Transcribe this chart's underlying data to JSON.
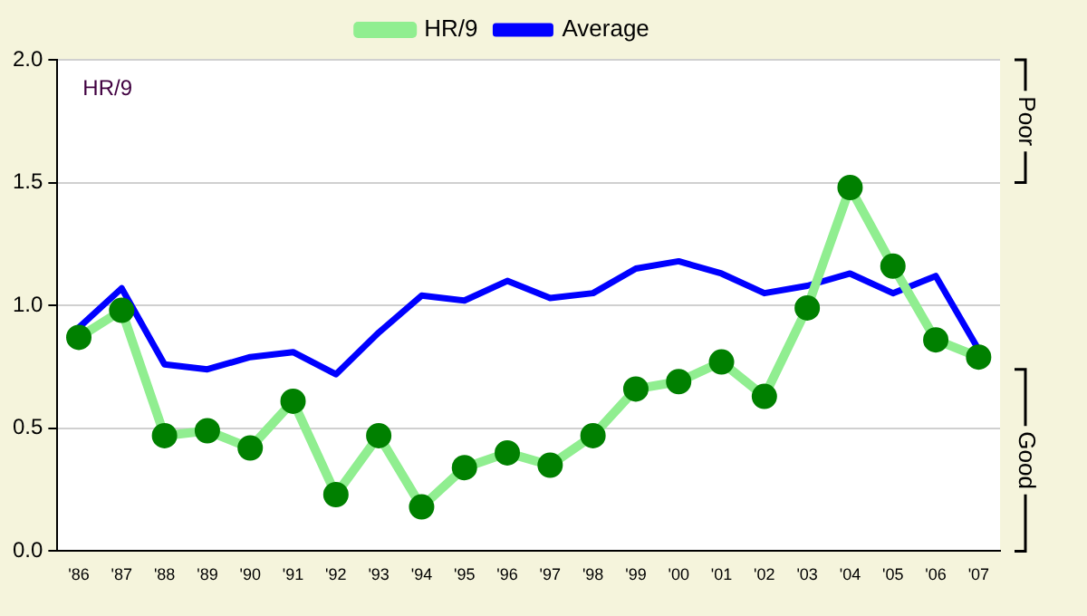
{
  "chart_data": {
    "type": "line",
    "ylabel": "HR/9",
    "categories": [
      "'86",
      "'87",
      "'88",
      "'89",
      "'90",
      "'91",
      "'92",
      "'93",
      "'94",
      "'95",
      "'96",
      "'97",
      "'98",
      "'99",
      "'00",
      "'01",
      "'02",
      "'03",
      "'04",
      "'05",
      "'06",
      "'07"
    ],
    "series": [
      {
        "name": "HR/9",
        "color": "#90ee90",
        "marker": "circle",
        "values": [
          0.87,
          0.98,
          0.47,
          0.49,
          0.42,
          0.61,
          0.23,
          0.47,
          0.18,
          0.34,
          0.4,
          0.35,
          0.47,
          0.66,
          0.69,
          0.77,
          0.63,
          0.99,
          1.48,
          1.16,
          0.86,
          0.79
        ]
      },
      {
        "name": "Average",
        "color": "#0000ff",
        "marker": "none",
        "values": [
          0.91,
          1.07,
          0.76,
          0.74,
          0.79,
          0.81,
          0.72,
          0.89,
          1.04,
          1.02,
          1.1,
          1.03,
          1.05,
          1.15,
          1.18,
          1.13,
          1.05,
          1.08,
          1.13,
          1.05,
          1.12,
          0.82
        ]
      }
    ],
    "ylim": [
      0,
      2
    ],
    "yticks": [
      {
        "value": 0,
        "label": "0.0"
      },
      {
        "value": 0.5,
        "label": "0.5"
      },
      {
        "value": 1,
        "label": "1.0"
      },
      {
        "value": 1.5,
        "label": "1.5"
      },
      {
        "value": 2,
        "label": "2.0"
      }
    ],
    "grid": "y",
    "legend": "top",
    "annotations": [
      "Poor",
      "Good"
    ]
  }
}
